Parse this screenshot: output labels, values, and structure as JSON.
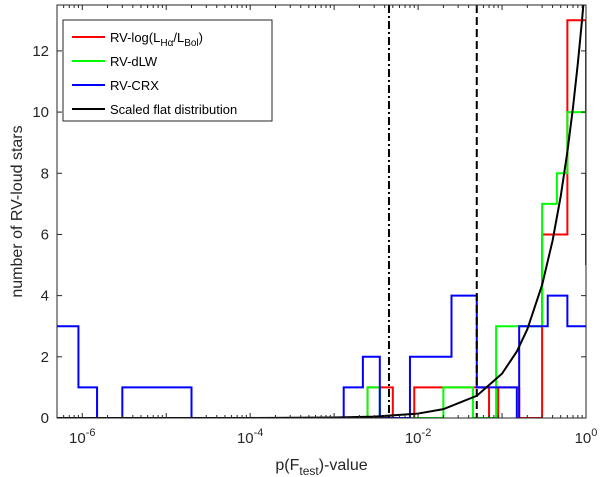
{
  "chart_data": {
    "type": "line",
    "title": "",
    "xscale": "log",
    "xlim": [
      5e-07,
      1
    ],
    "ylim": [
      0,
      13.5
    ],
    "xticks": [
      {
        "value": 1e-06,
        "base": "10",
        "exp": "-6"
      },
      {
        "value": 0.0001,
        "base": "10",
        "exp": "-4"
      },
      {
        "value": 0.01,
        "base": "10",
        "exp": "-2"
      },
      {
        "value": 1,
        "base": "10",
        "exp": "0"
      }
    ],
    "yticks": [
      0,
      2,
      4,
      6,
      8,
      10,
      12
    ],
    "xlabel": {
      "pre": "p(F",
      "sub": "test",
      "post": ")-value"
    },
    "ylabel": "number of RV-loud stars",
    "grid": false,
    "legend_position": "top-left",
    "vlines": [
      {
        "x": 0.0045,
        "style": "dashdot"
      },
      {
        "x": 0.05,
        "style": "dashed"
      }
    ],
    "series": [
      {
        "name": {
          "pre": "RV-log(L",
          "sub1": "Hα",
          "mid": "/L",
          "sub2": "Bol",
          "post": ")"
        },
        "color": "#ff0000",
        "kind": "step",
        "points": [
          [
            0.0025,
            0
          ],
          [
            0.0025,
            1
          ],
          [
            0.005,
            1
          ],
          [
            0.005,
            0
          ],
          [
            0.009,
            0
          ],
          [
            0.009,
            1
          ],
          [
            0.07,
            1
          ],
          [
            0.07,
            0
          ],
          [
            0.09,
            0
          ],
          [
            0.09,
            1
          ],
          [
            0.16,
            1
          ],
          [
            0.16,
            0
          ],
          [
            0.3,
            0
          ],
          [
            0.3,
            6
          ],
          [
            0.6,
            6
          ],
          [
            0.6,
            13
          ],
          [
            1,
            13
          ],
          [
            1,
            5
          ]
        ]
      },
      {
        "name": "RV-dLW",
        "color": "#00ff00",
        "kind": "step",
        "points": [
          [
            0.0025,
            0
          ],
          [
            0.0025,
            1
          ],
          [
            0.0035,
            1
          ],
          [
            0.0035,
            0
          ],
          [
            0.02,
            0
          ],
          [
            0.02,
            1
          ],
          [
            0.045,
            1
          ],
          [
            0.045,
            0
          ],
          [
            0.085,
            0
          ],
          [
            0.085,
            3
          ],
          [
            0.3,
            3
          ],
          [
            0.3,
            7
          ],
          [
            0.45,
            7
          ],
          [
            0.45,
            8
          ],
          [
            0.6,
            8
          ],
          [
            0.6,
            10
          ],
          [
            1,
            10
          ],
          [
            1,
            8
          ]
        ]
      },
      {
        "name": "RV-CRX",
        "color": "#0000ff",
        "kind": "step",
        "points": [
          [
            5e-07,
            3
          ],
          [
            9e-07,
            3
          ],
          [
            9e-07,
            1
          ],
          [
            1.5e-06,
            1
          ],
          [
            1.5e-06,
            0
          ],
          [
            3e-06,
            0
          ],
          [
            3e-06,
            1
          ],
          [
            2e-05,
            1
          ],
          [
            2e-05,
            0
          ],
          [
            0.0013,
            0
          ],
          [
            0.0013,
            1
          ],
          [
            0.0022,
            1
          ],
          [
            0.0022,
            2
          ],
          [
            0.0035,
            2
          ],
          [
            0.0035,
            0
          ],
          [
            0.008,
            0
          ],
          [
            0.008,
            2
          ],
          [
            0.025,
            2
          ],
          [
            0.025,
            4
          ],
          [
            0.05,
            4
          ],
          [
            0.05,
            1
          ],
          [
            0.15,
            1
          ],
          [
            0.15,
            0
          ],
          [
            0.16,
            0
          ],
          [
            0.16,
            3
          ],
          [
            0.35,
            3
          ],
          [
            0.35,
            4
          ],
          [
            0.6,
            4
          ],
          [
            0.6,
            3
          ],
          [
            1,
            3
          ]
        ]
      },
      {
        "name": "Scaled flat distribution",
        "color": "#000000",
        "kind": "curve",
        "formula": "y = 14.5 * x",
        "points": [
          [
            5e-07,
            7.25e-06
          ],
          [
            0.0001,
            0.00145
          ],
          [
            0.001,
            0.0145
          ],
          [
            0.003,
            0.0435
          ],
          [
            0.01,
            0.145
          ],
          [
            0.02,
            0.29
          ],
          [
            0.05,
            0.725
          ],
          [
            0.1,
            1.45
          ],
          [
            0.15,
            2.175
          ],
          [
            0.2,
            2.9
          ],
          [
            0.3,
            4.35
          ],
          [
            0.4,
            5.8
          ],
          [
            0.5,
            7.25
          ],
          [
            0.6,
            8.7
          ],
          [
            0.7,
            10.15
          ],
          [
            0.8,
            11.6
          ],
          [
            0.9,
            13.05
          ],
          [
            0.93,
            13.5
          ]
        ]
      }
    ]
  }
}
